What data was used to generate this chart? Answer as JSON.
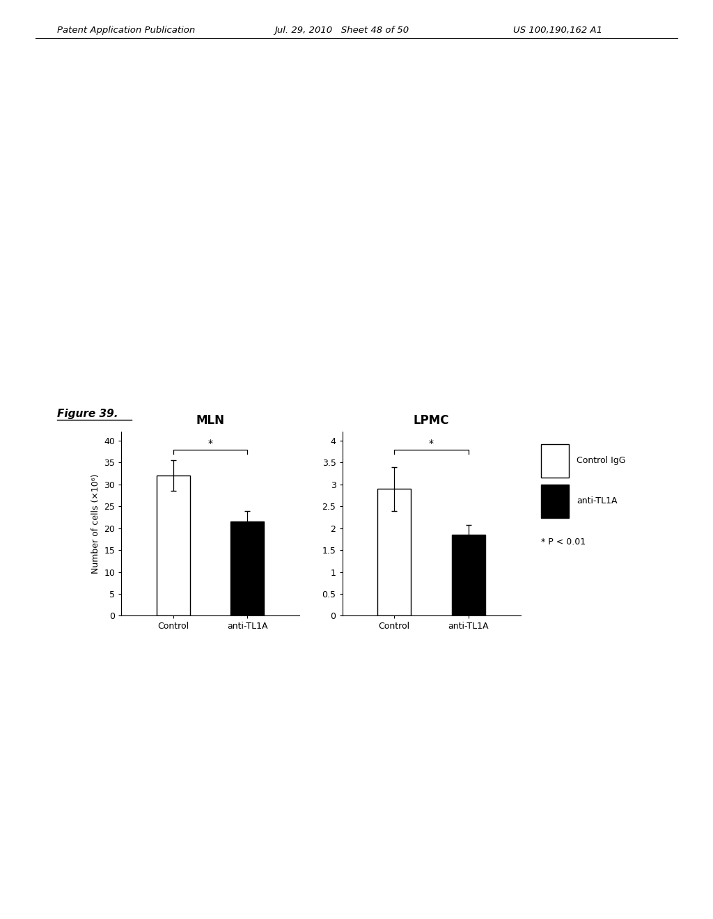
{
  "header_left": "Patent Application Publication",
  "header_mid": "Jul. 29, 2010   Sheet 48 of 50",
  "header_right": "US 100,190,162 A1",
  "figure_label": "Figure 39.",
  "mln_title": "MLN",
  "lpmc_title": "LPMC",
  "ylabel": "Number of cells (×10⁶)",
  "mln_yticks": [
    0,
    5,
    10,
    15,
    20,
    25,
    30,
    35,
    40
  ],
  "lpmc_yticks": [
    0,
    0.5,
    1,
    1.5,
    2,
    2.5,
    3,
    3.5,
    4
  ],
  "mln_ylim": [
    0,
    42
  ],
  "lpmc_ylim": [
    0,
    4.2
  ],
  "mln_control_val": 32.0,
  "mln_control_err": 3.5,
  "mln_antitl1a_val": 21.5,
  "mln_antitl1a_err": 2.5,
  "lpmc_control_val": 2.9,
  "lpmc_control_err": 0.5,
  "lpmc_antitl1a_val": 1.85,
  "lpmc_antitl1a_err": 0.22,
  "legend_labels": [
    "Control IgG",
    "anti-TL1A"
  ],
  "sig_label": "* P < 0.01",
  "bar_colors": [
    "white",
    "black"
  ],
  "bar_edgecolor": "black",
  "background_color": "white",
  "categories": [
    "Control",
    "anti-TL1A"
  ]
}
